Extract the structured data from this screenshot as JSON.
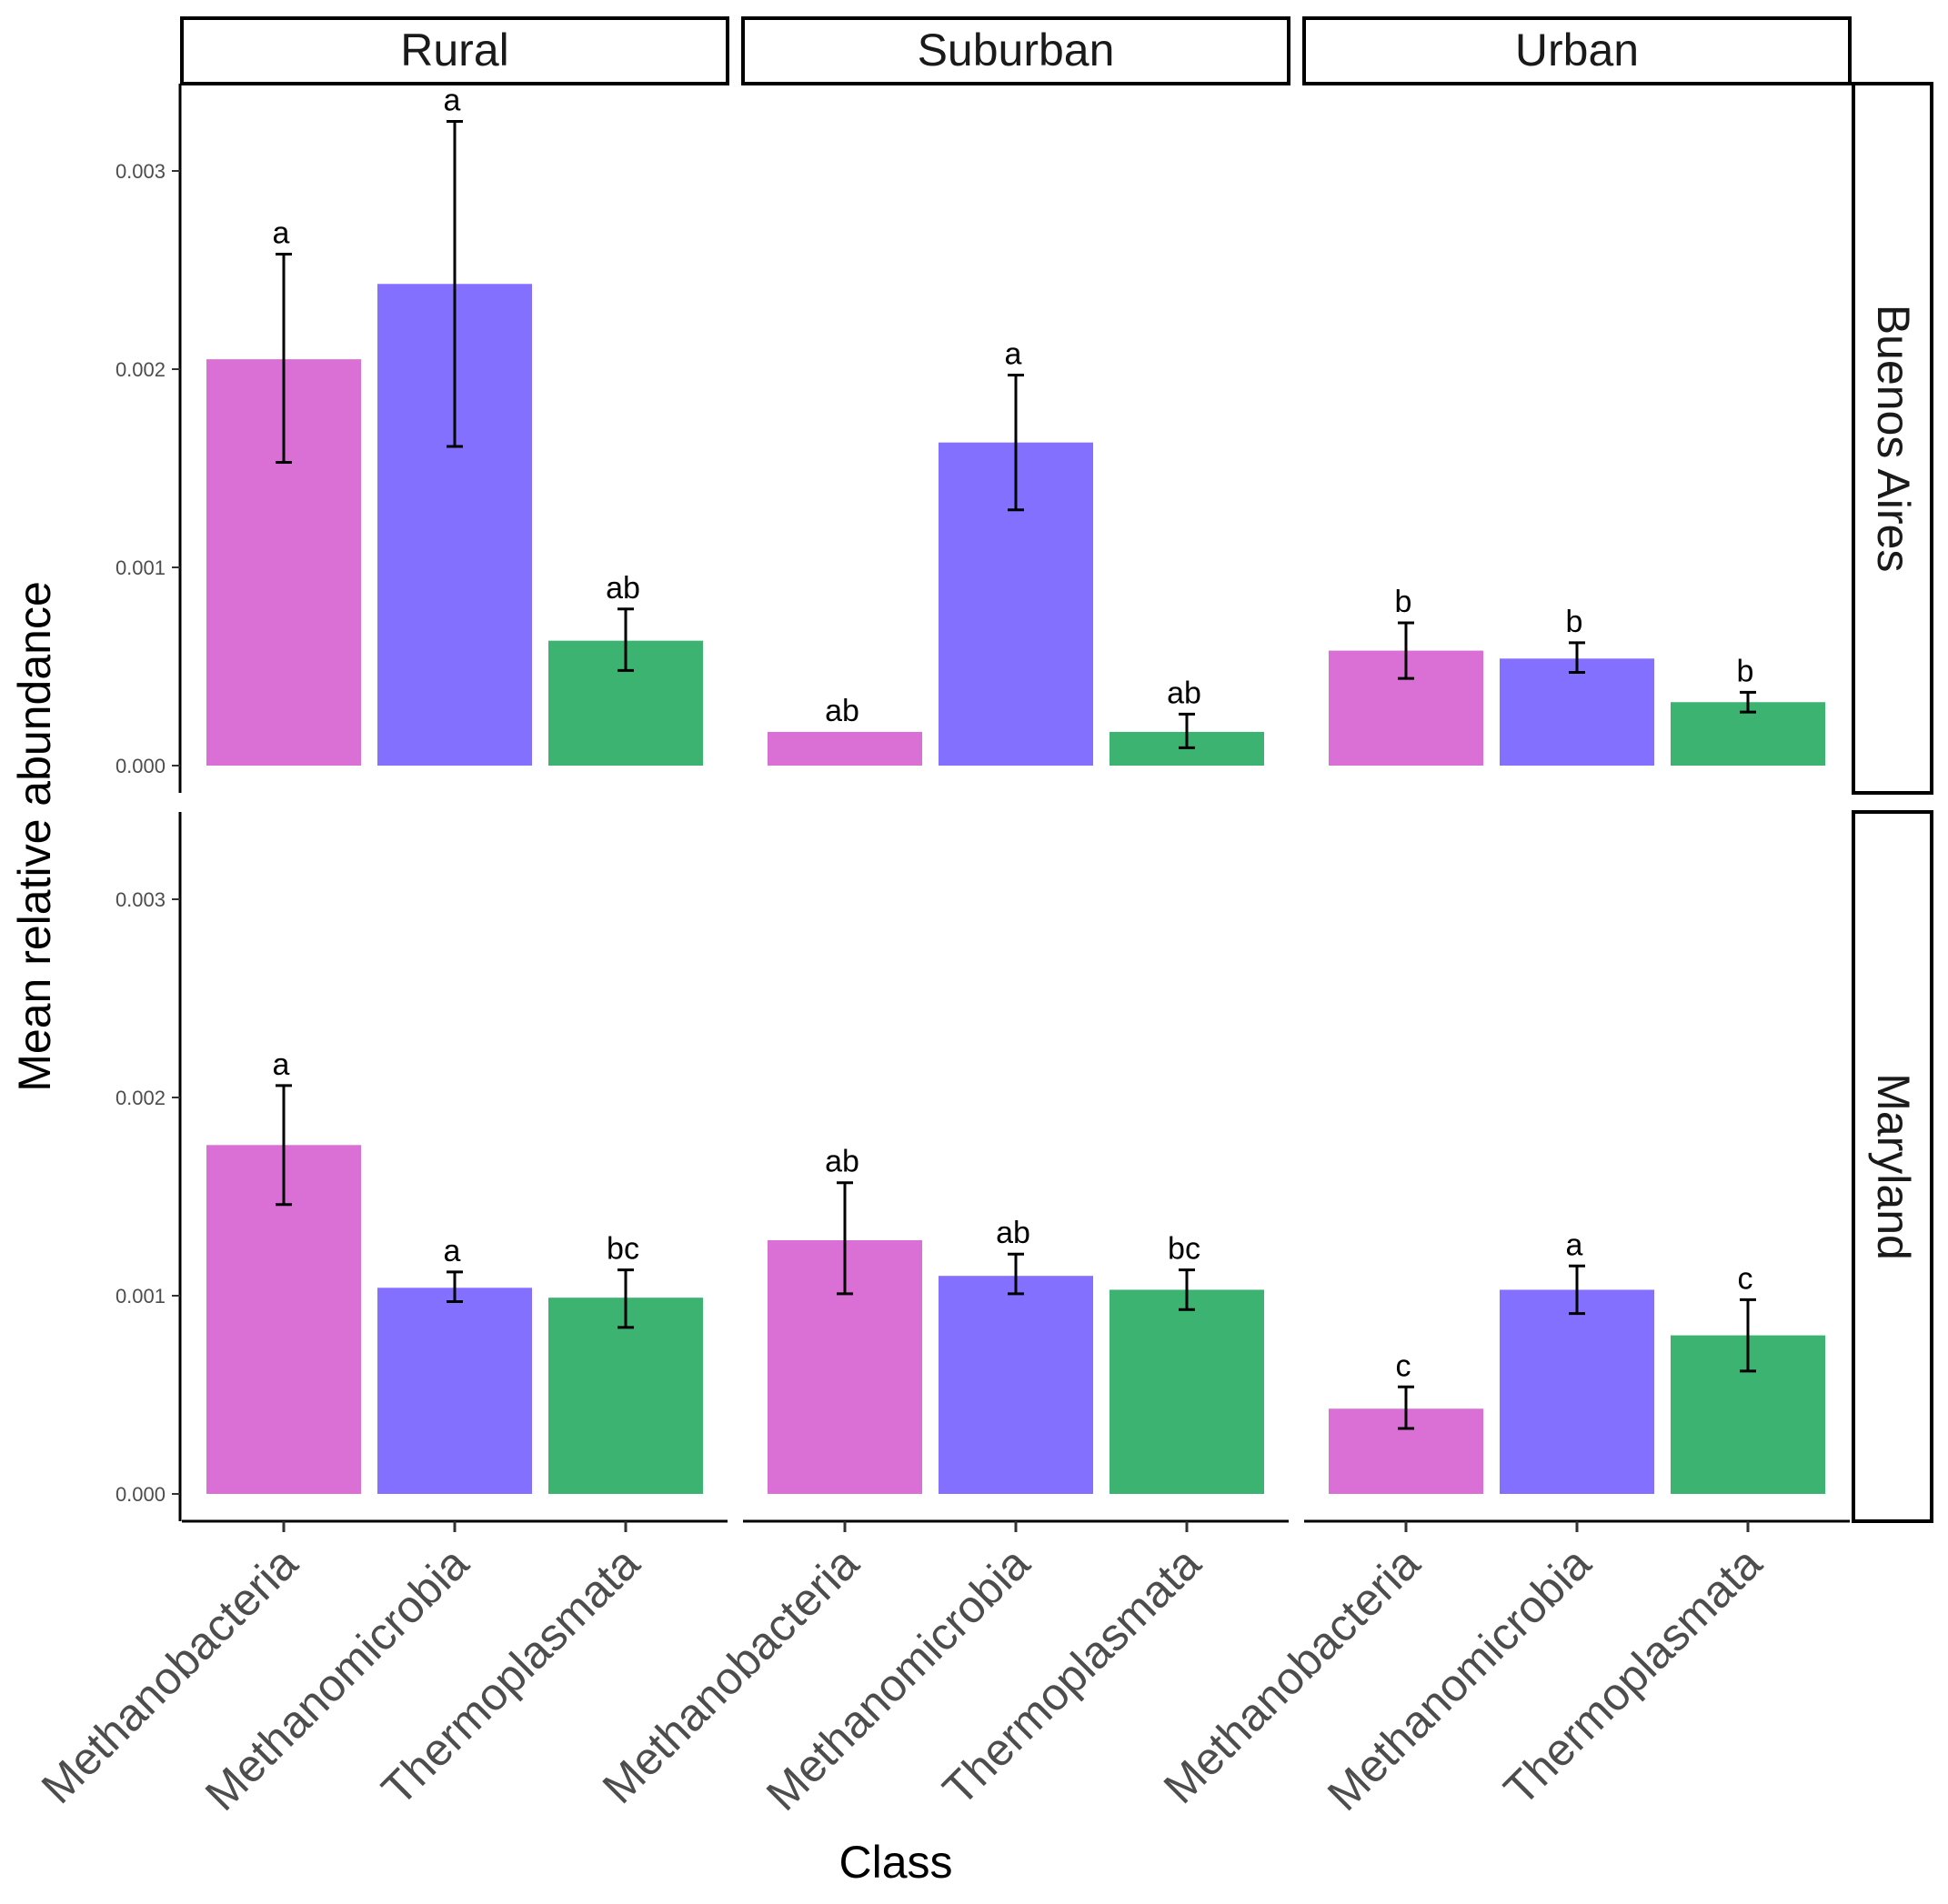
{
  "chart_data": {
    "type": "bar",
    "xlabel": "Class",
    "ylabel": "Mean relative abundance",
    "ylim": [
      0,
      0.0033
    ],
    "y_ticks": [
      "0.000",
      "0.001",
      "0.002",
      "0.003"
    ],
    "y_tick_values": [
      0,
      0.001,
      0.002,
      0.003
    ],
    "categories": [
      "Methanobacteria",
      "Methanomicrobia",
      "Thermoplasmata"
    ],
    "colors": {
      "Methanobacteria": "#DA70D6",
      "Methanomicrobia": "#8470FF",
      "Thermoplasmata": "#3CB371"
    },
    "column_facets": [
      "Rural",
      "Suburban",
      "Urban"
    ],
    "row_facets": [
      "Buenos Aires",
      "Maryland"
    ],
    "panels": [
      {
        "row": "Buenos Aires",
        "col": "Rural",
        "values": [
          0.00205,
          0.00243,
          0.00063
        ],
        "err_low": [
          0.00153,
          0.00161,
          0.00048
        ],
        "err_high": [
          0.00258,
          0.00325,
          0.00079
        ],
        "labels": [
          "a",
          "a",
          "ab"
        ]
      },
      {
        "row": "Buenos Aires",
        "col": "Suburban",
        "values": [
          0.00017,
          0.00163,
          0.00017
        ],
        "err_low": [
          0.00017,
          0.00129,
          9e-05
        ],
        "err_high": [
          0.00017,
          0.00197,
          0.00026
        ],
        "labels": [
          "ab",
          "a",
          "ab"
        ]
      },
      {
        "row": "Buenos Aires",
        "col": "Urban",
        "values": [
          0.00058,
          0.00054,
          0.00032
        ],
        "err_low": [
          0.00044,
          0.00047,
          0.00027
        ],
        "err_high": [
          0.00072,
          0.00062,
          0.00037
        ],
        "labels": [
          "b",
          "b",
          "b"
        ]
      },
      {
        "row": "Maryland",
        "col": "Rural",
        "values": [
          0.00176,
          0.00104,
          0.00099
        ],
        "err_low": [
          0.00146,
          0.00097,
          0.00084
        ],
        "err_high": [
          0.00206,
          0.00112,
          0.00113
        ],
        "labels": [
          "a",
          "a",
          "bc"
        ]
      },
      {
        "row": "Maryland",
        "col": "Suburban",
        "values": [
          0.00128,
          0.0011,
          0.00103
        ],
        "err_low": [
          0.00101,
          0.00101,
          0.00093
        ],
        "err_high": [
          0.00157,
          0.00121,
          0.00113
        ],
        "labels": [
          "ab",
          "ab",
          "bc"
        ]
      },
      {
        "row": "Maryland",
        "col": "Urban",
        "values": [
          0.00043,
          0.00103,
          0.0008
        ],
        "err_low": [
          0.00033,
          0.00091,
          0.00062
        ],
        "err_high": [
          0.00054,
          0.00115,
          0.00098
        ],
        "labels": [
          "c",
          "a",
          "c"
        ]
      }
    ]
  }
}
